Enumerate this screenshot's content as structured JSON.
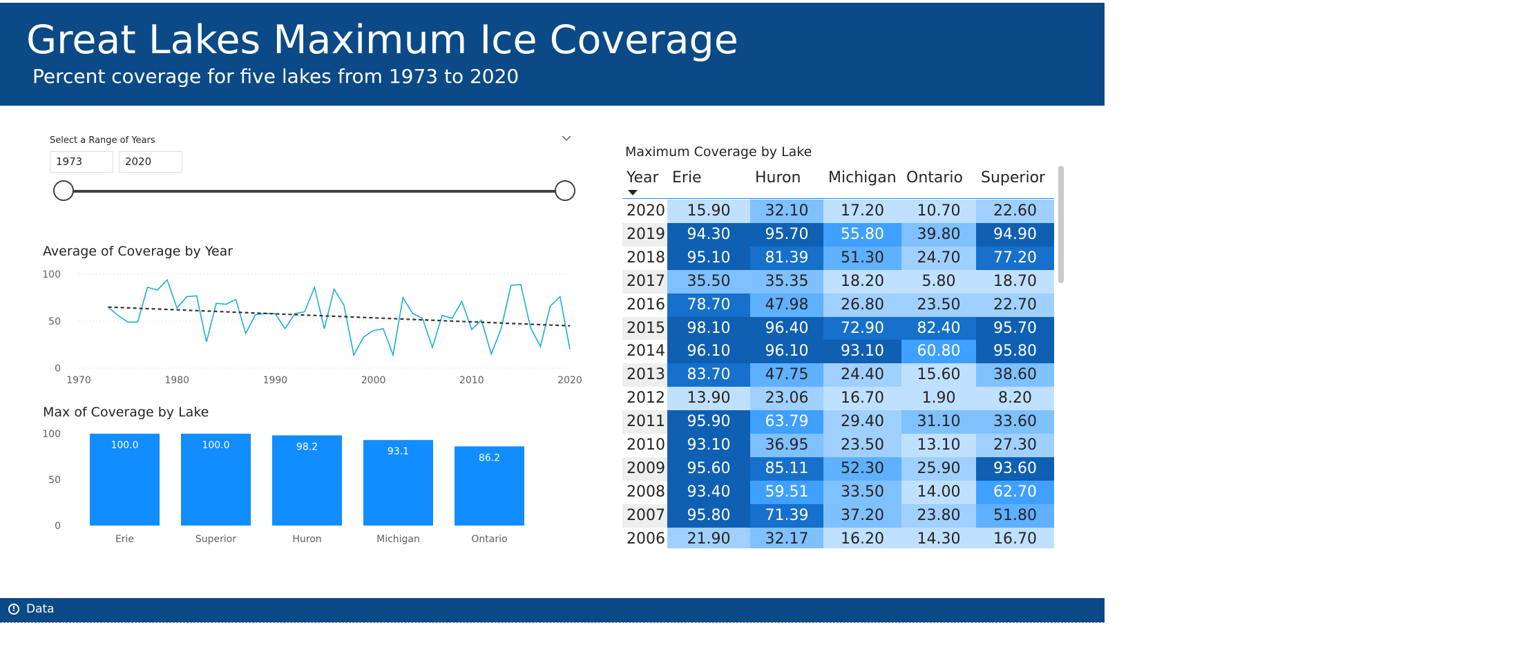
{
  "header": {
    "title": "Great Lakes Maximum Ice Coverage",
    "subtitle": "Percent coverage for five lakes from 1973 to 2020"
  },
  "slicer": {
    "title": "Select a Range of Years",
    "start": "1973",
    "end": "2020",
    "icon": "chevron-down-icon"
  },
  "footer": {
    "label": "Data",
    "icon": "info-icon"
  },
  "colors": {
    "header_bg": "#0B4A87",
    "accent": "#118DFF",
    "scale": [
      "#BFE0FF",
      "#9FD0FF",
      "#7FC0FF",
      "#5FB0FF",
      "#3FA0FF",
      "#208EEE",
      "#1670CC",
      "#0F5FB3"
    ]
  },
  "line_chart": {
    "title": "Average of Coverage by Year",
    "y_ticks": [
      "100",
      "50",
      "0"
    ],
    "x_ticks": [
      "1970",
      "1980",
      "1990",
      "2000",
      "2010",
      "2020"
    ]
  },
  "bar_chart": {
    "title": "Max of Coverage by Lake",
    "y_ticks": [
      "100",
      "50",
      "0"
    ]
  },
  "table": {
    "title": "Maximum Coverage by Lake",
    "columns": [
      "Year",
      "Erie",
      "Huron",
      "Michigan",
      "Ontario",
      "Superior"
    ]
  },
  "chart_data": [
    {
      "type": "line",
      "title": "Average of Coverage by Year",
      "ylim": [
        0,
        100
      ],
      "xlim": [
        1970,
        2020
      ],
      "grid": true,
      "x": [
        1973,
        1974,
        1975,
        1976,
        1977,
        1978,
        1979,
        1980,
        1981,
        1982,
        1983,
        1984,
        1985,
        1986,
        1987,
        1988,
        1989,
        1990,
        1991,
        1992,
        1993,
        1994,
        1995,
        1996,
        1997,
        1998,
        1999,
        2000,
        2001,
        2002,
        2003,
        2004,
        2005,
        2006,
        2007,
        2008,
        2009,
        2010,
        2011,
        2012,
        2013,
        2014,
        2015,
        2016,
        2017,
        2018,
        2019,
        2020
      ],
      "series": [
        {
          "values": [
            65,
            56,
            49,
            49,
            86,
            83,
            94,
            64,
            76,
            77,
            28,
            69,
            68,
            73,
            37,
            57,
            58,
            58,
            42,
            58,
            60,
            86,
            42,
            84,
            67,
            14,
            33,
            40,
            42,
            14,
            75,
            58,
            53,
            22,
            56,
            53,
            71,
            41,
            51,
            15,
            42,
            88,
            89,
            43,
            23,
            66,
            76,
            20
          ]
        }
      ],
      "trendline": {
        "values": [
          65,
          45
        ]
      }
    },
    {
      "type": "bar",
      "title": "Max of Coverage by Lake",
      "categories": [
        "Erie",
        "Superior",
        "Huron",
        "Michigan",
        "Ontario"
      ],
      "values": [
        100.0,
        100.0,
        98.2,
        93.1,
        86.2
      ],
      "data_labels": [
        "100.0",
        "100.0",
        "98.2",
        "93.1",
        "86.2"
      ],
      "ylim": [
        0,
        100
      ],
      "color": "#118DFF"
    },
    {
      "type": "table",
      "title": "Maximum Coverage by Lake",
      "columns": [
        "Year",
        "Erie",
        "Huron",
        "Michigan",
        "Ontario",
        "Superior"
      ],
      "rows": [
        [
          "2020",
          "15.90",
          "32.10",
          "17.20",
          "10.70",
          "22.60"
        ],
        [
          "2019",
          "94.30",
          "95.70",
          "55.80",
          "39.80",
          "94.90"
        ],
        [
          "2018",
          "95.10",
          "81.39",
          "51.30",
          "24.70",
          "77.20"
        ],
        [
          "2017",
          "35.50",
          "35.35",
          "18.20",
          "5.80",
          "18.70"
        ],
        [
          "2016",
          "78.70",
          "47.98",
          "26.80",
          "23.50",
          "22.70"
        ],
        [
          "2015",
          "98.10",
          "96.40",
          "72.90",
          "82.40",
          "95.70"
        ],
        [
          "2014",
          "96.10",
          "96.10",
          "93.10",
          "60.80",
          "95.80"
        ],
        [
          "2013",
          "83.70",
          "47.75",
          "24.40",
          "15.60",
          "38.60"
        ],
        [
          "2012",
          "13.90",
          "23.06",
          "16.70",
          "1.90",
          "8.20"
        ],
        [
          "2011",
          "95.90",
          "63.79",
          "29.40",
          "31.10",
          "33.60"
        ],
        [
          "2010",
          "93.10",
          "36.95",
          "23.50",
          "13.10",
          "27.30"
        ],
        [
          "2009",
          "95.60",
          "85.11",
          "52.30",
          "25.90",
          "93.60"
        ],
        [
          "2008",
          "93.40",
          "59.51",
          "33.50",
          "14.00",
          "62.70"
        ],
        [
          "2007",
          "95.80",
          "71.39",
          "37.20",
          "23.80",
          "51.80"
        ],
        [
          "2006",
          "21.90",
          "32.17",
          "16.20",
          "14.30",
          "16.70"
        ]
      ]
    }
  ]
}
